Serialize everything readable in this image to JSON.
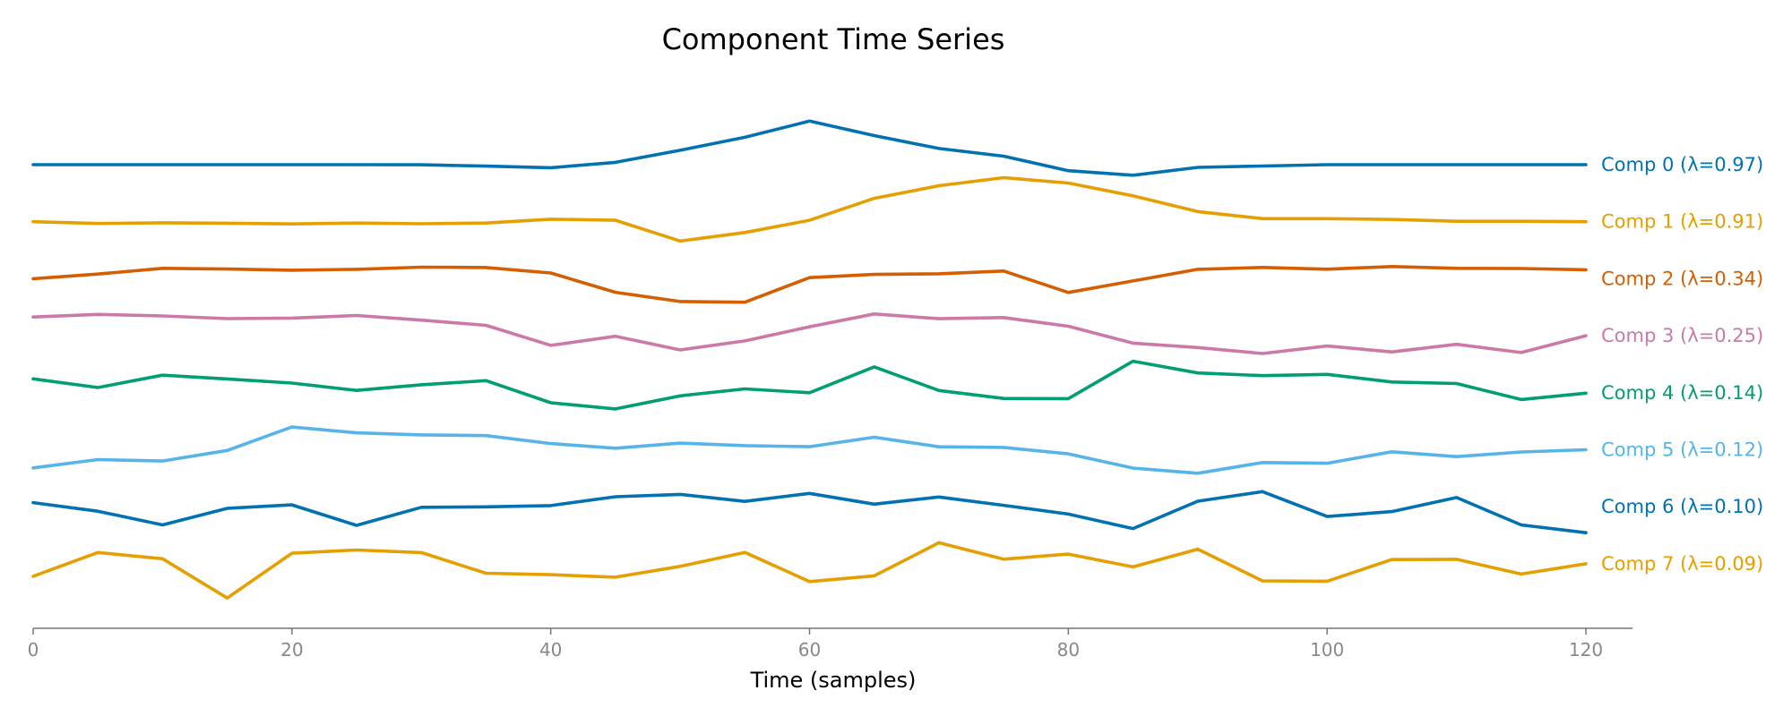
{
  "chart_data": {
    "type": "line",
    "title": "Component Time Series",
    "xlabel": "Time (samples)",
    "ylabel": "",
    "xlim": [
      0,
      123.6
    ],
    "x_ticks": [
      0,
      20,
      40,
      60,
      80,
      100,
      120
    ],
    "legend": "inline-right",
    "grid": false,
    "x_every": 5,
    "series": [
      {
        "name": "Comp 0 (λ=0.97)",
        "color": "#0072B2",
        "offset": 0,
        "values": [
          0,
          0,
          0,
          0,
          0,
          0,
          -0.1,
          -1.6,
          -3.4,
          2.6,
          16.1,
          30.6,
          48.7,
          32.5,
          18.1,
          9.5,
          -6.7,
          -11.8,
          -3,
          -1.5,
          0,
          0,
          0,
          0,
          0
        ]
      },
      {
        "name": "Comp 1 (λ=0.91)",
        "color": "#E69F00",
        "offset": 1,
        "values": [
          0,
          -2,
          -1.2,
          -1.7,
          -2.5,
          -1.5,
          -2.3,
          -1.5,
          2.8,
          1.6,
          -21.6,
          -12.1,
          1.6,
          26.1,
          40.2,
          49.2,
          43.2,
          28.9,
          11.3,
          3.4,
          3.4,
          2.5,
          0.5,
          0.5,
          0
        ]
      },
      {
        "name": "Comp 2 (λ=0.34)",
        "color": "#D55E00",
        "offset": 2,
        "values": [
          0,
          5.2,
          11.6,
          10.8,
          9.5,
          10.5,
          12.9,
          12.5,
          6.4,
          -15.2,
          -25.5,
          -26.3,
          1.2,
          4.8,
          5.5,
          8.6,
          -15.4,
          -2.5,
          10.5,
          12.6,
          10.6,
          13.6,
          11.6,
          11.4,
          10
        ]
      },
      {
        "name": "Comp 3 (λ=0.25)",
        "color": "#CC79A7",
        "offset": 3,
        "values": [
          20.9,
          23.8,
          22.1,
          19.1,
          19.7,
          22.6,
          17.4,
          11.6,
          -10.8,
          -0.6,
          -15.9,
          -5.8,
          10,
          24.3,
          19,
          20.3,
          10.6,
          -8.3,
          -13.2,
          -19.9,
          -11.5,
          -18.1,
          -9.6,
          -18.8,
          0
        ]
      },
      {
        "name": "Comp 4 (λ=0.14)",
        "color": "#009E73",
        "offset": 4,
        "values": [
          15.5,
          5.8,
          19.6,
          15.4,
          10.8,
          2.6,
          8.9,
          13.5,
          -11.2,
          -18.1,
          -3.5,
          4.3,
          0,
          28.9,
          2.5,
          -6.4,
          -6.6,
          35.2,
          22.1,
          19.1,
          20.5,
          12,
          10.3,
          -7.6,
          -0.5
        ]
      },
      {
        "name": "Comp 5 (λ=0.12)",
        "color": "#56B4E9",
        "offset": 5,
        "values": [
          -20.3,
          -11,
          -12.6,
          -0.8,
          25.4,
          18.9,
          16.6,
          15.8,
          6.9,
          1.7,
          7.4,
          4.6,
          3.4,
          14,
          3.3,
          2.6,
          -4.6,
          -20.5,
          -26.3,
          -14.3,
          -15.1,
          -2.3,
          -7.7,
          -2.5,
          0
        ]
      },
      {
        "name": "Comp 6 (λ=0.10)",
        "color": "#0072B2",
        "offset": 6,
        "values": [
          4.6,
          -5,
          -20.3,
          -1.8,
          2.1,
          -20.8,
          -0.6,
          -0.1,
          1.3,
          11.2,
          13.8,
          6,
          14.9,
          2.9,
          10.9,
          1.6,
          -8.2,
          -24.4,
          6.2,
          16.9,
          -10.9,
          -5.4,
          10.3,
          -20.3,
          -29
        ]
      },
      {
        "name": "Comp 7 (λ=0.09)",
        "color": "#E69F00",
        "offset": 7,
        "values": [
          -14,
          12.6,
          5.6,
          -38.3,
          11.8,
          15.4,
          12.5,
          -10.6,
          -12.2,
          -15,
          -2.9,
          12.7,
          -19.9,
          -13.5,
          23.5,
          5.1,
          10.8,
          -3.5,
          16.3,
          -19.1,
          -19.5,
          4.7,
          5,
          -11.5,
          0
        ]
      }
    ]
  }
}
